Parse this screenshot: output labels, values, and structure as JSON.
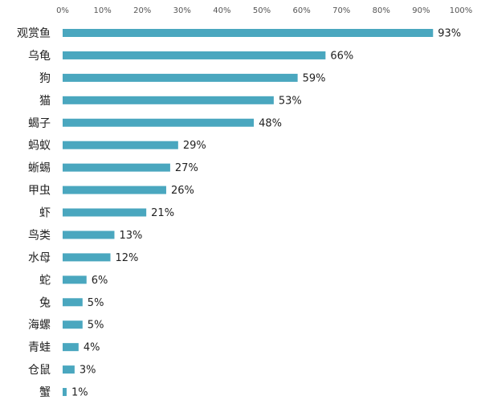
{
  "chart_data": {
    "type": "bar",
    "orientation": "horizontal",
    "categories": [
      "观赏鱼",
      "乌龟",
      "狗",
      "猫",
      "蝎子",
      "蚂蚁",
      "蜥蜴",
      "甲虫",
      "虾",
      "鸟类",
      "水母",
      "蛇",
      "兔",
      "海螺",
      "青蛙",
      "仓鼠",
      "蟹"
    ],
    "values": [
      93,
      66,
      59,
      53,
      48,
      29,
      27,
      26,
      21,
      13,
      12,
      6,
      5,
      5,
      4,
      3,
      1
    ],
    "value_labels": [
      "93%",
      "66%",
      "59%",
      "53%",
      "48%",
      "29%",
      "27%",
      "26%",
      "21%",
      "13%",
      "12%",
      "6%",
      "5%",
      "5%",
      "4%",
      "3%",
      "1%"
    ],
    "color": "#4aa7bf",
    "xlim": [
      0,
      100
    ],
    "xticks": [
      {
        "value": 0,
        "label": "0%"
      },
      {
        "value": 10,
        "label": "10%"
      },
      {
        "value": 20,
        "label": "20%"
      },
      {
        "value": 30,
        "label": "30%"
      },
      {
        "value": 40,
        "label": "40%"
      },
      {
        "value": 50,
        "label": "50%"
      },
      {
        "value": 60,
        "label": "60%"
      },
      {
        "value": 70,
        "label": "70%"
      },
      {
        "value": 80,
        "label": "80%"
      },
      {
        "value": 90,
        "label": "90%"
      },
      {
        "value": 100,
        "label": "100%"
      }
    ],
    "grid": false
  }
}
